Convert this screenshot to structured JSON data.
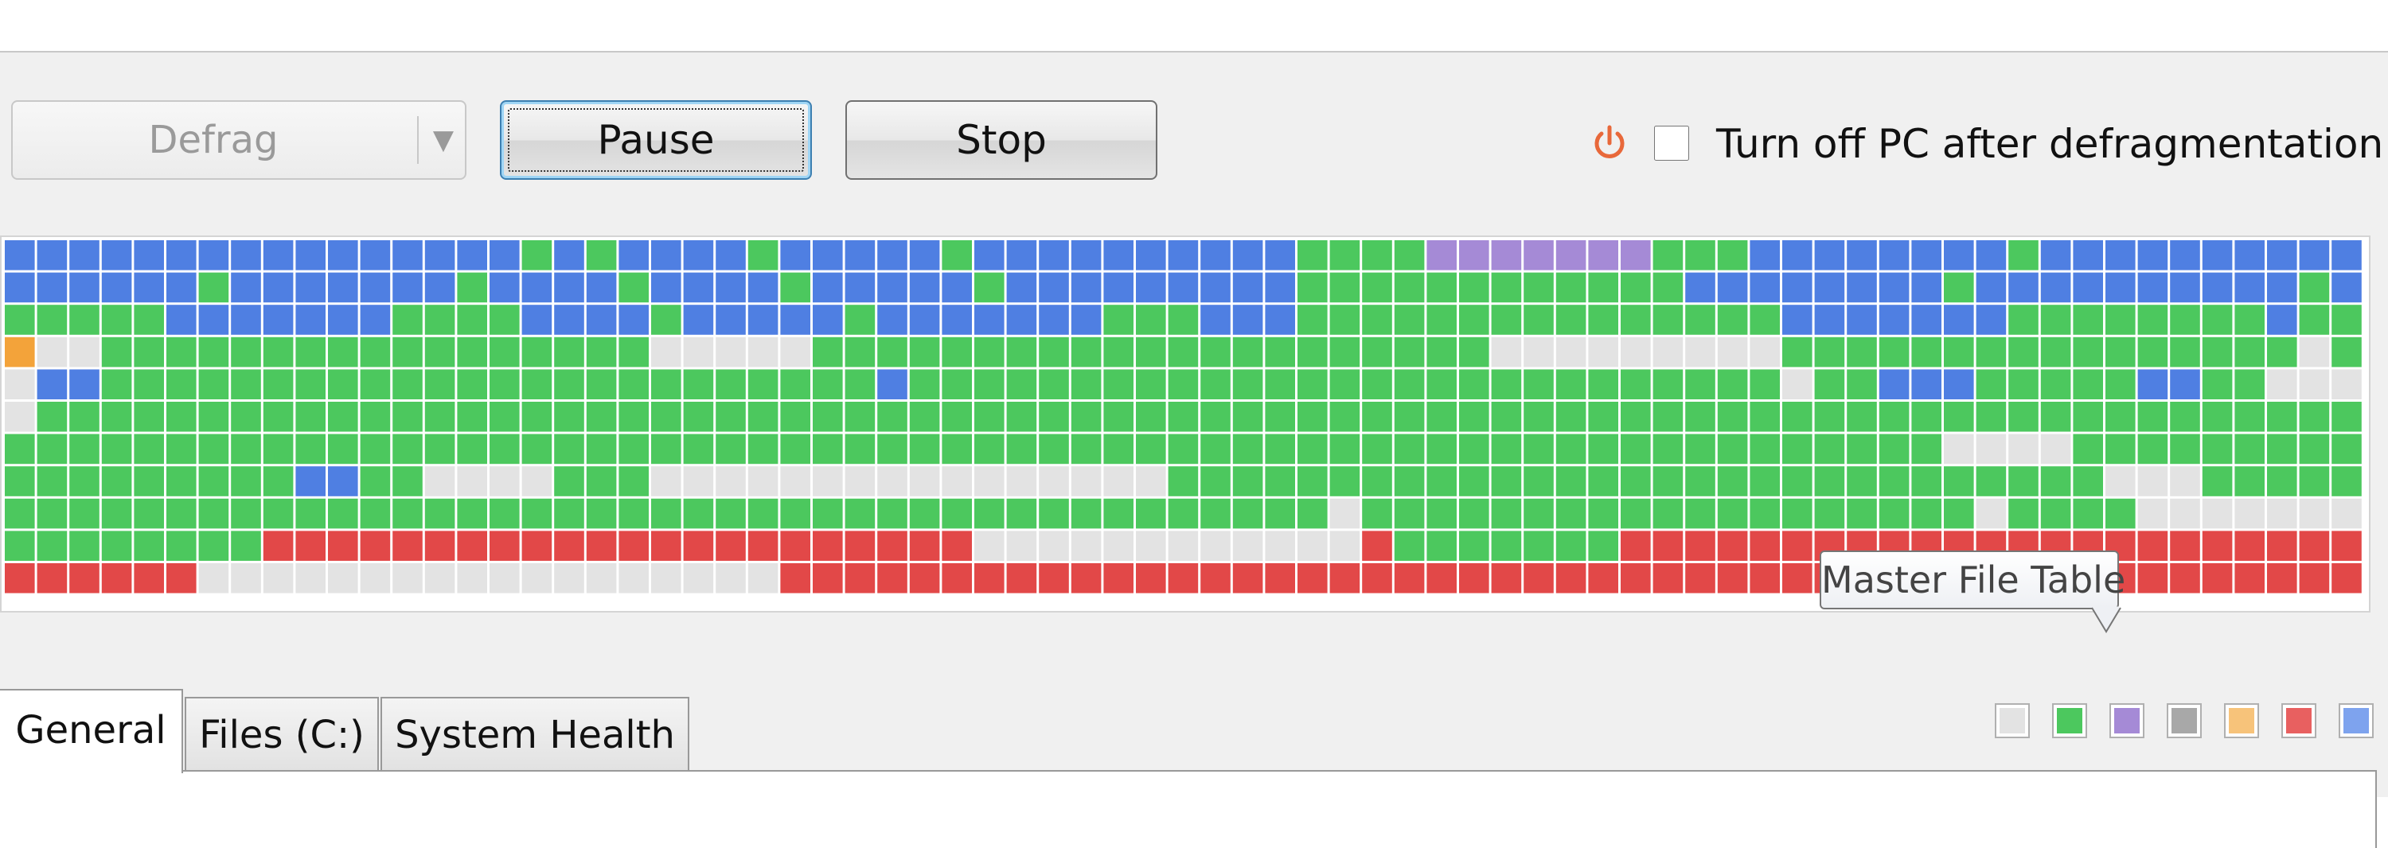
{
  "toolbar": {
    "defrag_label": "Defrag",
    "pause_label": "Pause",
    "stop_label": "Stop",
    "shutdown_label": "Turn off PC after defragmentation",
    "shutdown_checked": false
  },
  "colors": {
    "free": "#e3e3e3",
    "used": "#4cc85e",
    "mft": "#a58ad6",
    "system": "#a8a8a8",
    "fragmented": "#f3a33a",
    "unmovable": "#e24848",
    "processed": "#4f7fe2",
    "power_icon": "#e8683a"
  },
  "cluster_map": {
    "columns": 73,
    "rows": [
      "BBBBBBBBBBBBBBBBGBGBBBBGBBBBBGBBBBBBBBBBGGGGMMMMMMMGGGBBBBBBBBGBBBBBBBBBB",
      "BBBBBBGBBBBBBBGBBBBGBBBBGBBBBBGBBBBBBBBBGGGGGGGGGGGGBBBBBBBBGBBBBBBBBBBGB",
      "GGGGGBBBBBBBGGGGBBBBGBBBBBGBBBBBBBGGGBBBGGGGGGGGGGGGGGGBBBBBBBGGGGGGGGBGG",
      "OWWGGGGGGGGGGGGGGGGGWWWWWGGGGGGGGGGGGGGGGGGGGGWWWWWWWWWGGGGGGGGGGGGGGGGWG",
      "WBBGGGGGGGGGGGGGGGGGGGGGGGGBGGGGGGGGGGGGGGGGGGGGGGGGGGGWGGBBBGGGGGBBGGWWW",
      "WGGGGGGGGGGGGGGGGGGGGGGGGGGGGGGGGGGGGGGGGGGGGGGGGGGGGGGGGGGGGGGGGGGGGGGGG",
      "GGGGGGGGGGGGGGGGGGGGGGGGGGGGGGGGGGGGGGGGGGGGGGGGGGGGGGGGGGGGWWWWGGGGGGGGG",
      "GGGGGGGGGBBGGWWWWGGGWWWWWWWWWWWWWWWWGGGGGGGGGGGGGGGGGGGGGGGGGGGGGWWWGGGGG",
      "GGGGGGGGGGGGGGGGGGGGGGGGGGGGGGGGGGGGGGGGGWGGGGGGGGGGGGGGGGGGGWGGGGWWWWWWW",
      "GGGGGGGGRRRRRRRRRRRRRRRRRRRRRRWWWWWWWWWWWWRGGGGGGGRRRRRRRRRRRRRRRRRRRRRRR",
      "RRRRRRWWWWWWWWWWWWWWWWWWRRRRRRRRRRRRRRRRRRRRRRRRRRRRRRRRRRRRRRRRRRRRRRRRR"
    ]
  },
  "tooltip": {
    "text": "Master File Table"
  },
  "legend": [
    {
      "name": "free",
      "color": "#e3e3e3"
    },
    {
      "name": "used",
      "color": "#4cc85e"
    },
    {
      "name": "mft",
      "color": "#a58ad6"
    },
    {
      "name": "system",
      "color": "#a8a8a8"
    },
    {
      "name": "fragmented",
      "color": "#f7c37a"
    },
    {
      "name": "unmovable",
      "color": "#e86060"
    },
    {
      "name": "processed",
      "color": "#7ea3ee"
    }
  ],
  "tabs": [
    {
      "label": "General",
      "active": true
    },
    {
      "label": "Files (C:)",
      "active": false
    },
    {
      "label": "System Health",
      "active": false
    }
  ]
}
